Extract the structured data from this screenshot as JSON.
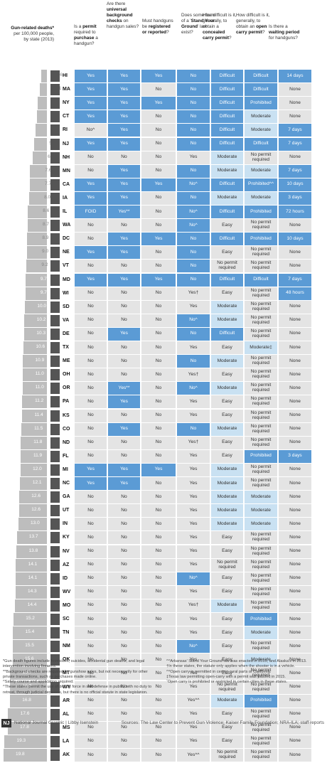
{
  "headers": {
    "deaths": [
      "Gun-related deaths*",
      "per 100,000 people,",
      "by state (2013)"
    ],
    "permit": [
      "Is a ",
      "permit",
      " required to ",
      "purchase",
      " a handgun?"
    ],
    "background": [
      "Are there ",
      "universal background checks",
      " on handgun sales?"
    ],
    "registered": [
      "Must handguns be ",
      "registered or reported",
      "?"
    ],
    "syg": [
      "Does some form of a '",
      "Stand Your Ground",
      "' law exist?"
    ],
    "concealed": [
      "How difficult is it, generally, to obtain a ",
      "concealed carry permit",
      "?"
    ],
    "open": [
      "How difficult is it, generally, to obtain an ",
      "open carry permit",
      "?"
    ],
    "waiting": [
      "Is there a ",
      "waiting period",
      " for handguns?"
    ]
  },
  "colors": {
    "blue": "#5b9bd5",
    "light": "#c9e1f2",
    "grey": "#e4e4e4",
    "dark": "#555555",
    "bar": "#bdbdbd"
  },
  "chart_data": {
    "type": "table",
    "xlim": [
      0,
      20
    ],
    "columns": [
      "State",
      "Gun-related deaths per 100,000",
      "Permit to purchase",
      "Universal background checks",
      "Registered or reported",
      "Stand Your Ground",
      "Concealed carry permit",
      "Open carry permit",
      "Waiting period"
    ],
    "rows": [
      [
        "HI",
        "2.6",
        "Yes",
        "Yes",
        "Yes",
        "No",
        "Difficult",
        "Difficult",
        "14 days"
      ],
      [
        "MA",
        "3.1",
        "Yes",
        "Yes",
        "No",
        "No",
        "Difficult",
        "Difficult",
        "None"
      ],
      [
        "NY",
        "4.2",
        "Yes",
        "Yes",
        "Yes",
        "No",
        "Difficult",
        "Prohibited",
        "None"
      ],
      [
        "CT",
        "4.4",
        "Yes",
        "Yes",
        "No",
        "No",
        "Difficult",
        "Moderate",
        "None"
      ],
      [
        "RI",
        "5.3",
        "No^",
        "Yes",
        "No",
        "No",
        "Difficult",
        "Moderate",
        "7 days"
      ],
      [
        "NJ",
        "5.7",
        "Yes",
        "Yes",
        "No",
        "No",
        "Difficult",
        "Difficult",
        "7 days"
      ],
      [
        "NH",
        "6.4",
        "No",
        "No",
        "No",
        "Yes",
        "Moderate",
        "No permit required",
        "None"
      ],
      [
        "MN",
        "7.6",
        "No",
        "Yes",
        "No",
        "No",
        "Moderate",
        "Moderate",
        "7 days"
      ],
      [
        "CA",
        "7.7",
        "Yes",
        "Yes",
        "Yes",
        "No^",
        "Difficult",
        "Prohibited^^",
        "10 days"
      ],
      [
        "IA",
        "8.0",
        "Yes",
        "Yes",
        "No",
        "No",
        "Moderate",
        "Moderate",
        "3 days"
      ],
      [
        "IL",
        "8.6",
        "FOID",
        "Yes**",
        "No",
        "No^",
        "Difficult",
        "Prohibited",
        "72 hours"
      ],
      [
        "WA",
        "8.7",
        "No",
        "No",
        "No",
        "No^",
        "Easy",
        "No permit required",
        "None"
      ],
      [
        "DC",
        "8.9",
        "No",
        "Yes",
        "Yes",
        "No",
        "Difficult",
        "Prohibited",
        "10 days"
      ],
      [
        "NE",
        "9.0",
        "Yes",
        "Yes",
        "No",
        "No",
        "Easy",
        "No permit required",
        "None"
      ],
      [
        "VT",
        "9.2",
        "No",
        "No",
        "No",
        "No",
        "No permit required",
        "No permit required",
        "None"
      ],
      [
        "MD",
        "9.7",
        "Yes",
        "Yes",
        "Yes",
        "No",
        "Difficult",
        "Difficult",
        "7 days"
      ],
      [
        "WI",
        "9.7",
        "No",
        "No",
        "No",
        "Yes†",
        "Easy",
        "No permit required",
        "48 hours"
      ],
      [
        "SD",
        "10.0",
        "No",
        "No",
        "No",
        "Yes",
        "Moderate",
        "No permit required",
        "None"
      ],
      [
        "VA",
        "10.2",
        "No",
        "No",
        "No",
        "No^",
        "Moderate",
        "No permit required",
        "None"
      ],
      [
        "DE",
        "10.3",
        "No",
        "Yes",
        "No",
        "No",
        "Difficult",
        "No permit required",
        "None"
      ],
      [
        "TX",
        "10.6",
        "No",
        "No",
        "No",
        "Yes",
        "Easy",
        "Moderate‡",
        "None"
      ],
      [
        "ME",
        "10.9",
        "No",
        "No",
        "No",
        "No",
        "Moderate",
        "No permit required",
        "None"
      ],
      [
        "OH",
        "11.0",
        "No",
        "No",
        "No",
        "Yes†",
        "Easy",
        "No permit required",
        "None"
      ],
      [
        "OR",
        "11.0",
        "No",
        "Yes**",
        "No",
        "No^",
        "Moderate",
        "No permit required",
        "None"
      ],
      [
        "PA",
        "11.2",
        "No",
        "Yes",
        "No",
        "Yes",
        "Easy",
        "No permit required",
        "None"
      ],
      [
        "KS",
        "11.4",
        "No",
        "No",
        "No",
        "Yes",
        "Easy",
        "No permit required",
        "None"
      ],
      [
        "CO",
        "11.5",
        "No",
        "Yes",
        "No",
        "No",
        "Moderate",
        "No permit required",
        "None"
      ],
      [
        "ND",
        "11.8",
        "No",
        "No",
        "No",
        "Yes†",
        "Easy",
        "No permit required",
        "None"
      ],
      [
        "FL",
        "11.9",
        "No",
        "No",
        "No",
        "Yes",
        "Easy",
        "Prohibited",
        "3 days"
      ],
      [
        "MI",
        "12.0",
        "Yes",
        "Yes",
        "Yes",
        "Yes",
        "Moderate",
        "No permit required",
        "None"
      ],
      [
        "NC",
        "12.1",
        "Yes",
        "Yes",
        "No",
        "Yes",
        "Moderate",
        "No permit required",
        "None"
      ],
      [
        "GA",
        "12.6",
        "No",
        "No",
        "No",
        "Yes",
        "Moderate",
        "Moderate",
        "None"
      ],
      [
        "UT",
        "12.6",
        "No",
        "No",
        "No",
        "Yes",
        "Moderate",
        "Moderate",
        "None"
      ],
      [
        "IN",
        "13.0",
        "No",
        "No",
        "No",
        "Yes",
        "Moderate",
        "Moderate",
        "None"
      ],
      [
        "KY",
        "13.7",
        "No",
        "No",
        "No",
        "Yes",
        "Easy",
        "No permit required",
        "None"
      ],
      [
        "NV",
        "13.8",
        "No",
        "No",
        "No",
        "Yes",
        "Easy",
        "No permit required",
        "None"
      ],
      [
        "AZ",
        "14.1",
        "No",
        "No",
        "No",
        "Yes",
        "No permit required",
        "No permit required",
        "None"
      ],
      [
        "ID",
        "14.1",
        "No",
        "No",
        "No",
        "No^",
        "Easy",
        "No permit required",
        "None"
      ],
      [
        "WV",
        "14.3",
        "No",
        "No",
        "No",
        "Yes",
        "Easy",
        "No permit required",
        "None"
      ],
      [
        "MO",
        "14.4",
        "No",
        "No",
        "No",
        "Yes†",
        "Moderate",
        "No permit required",
        "None"
      ],
      [
        "SC",
        "15.2",
        "No",
        "No",
        "No",
        "Yes",
        "Easy",
        "Prohibited",
        "None"
      ],
      [
        "TN",
        "15.4",
        "No",
        "No",
        "No",
        "Yes",
        "Easy",
        "Moderate",
        "None"
      ],
      [
        "NM",
        "15.5",
        "No",
        "No",
        "No",
        "No^",
        "Easy",
        "No permit required",
        "None"
      ],
      [
        "OK",
        "15.6",
        "No",
        "No",
        "No",
        "Yes",
        "Easy",
        "Moderate",
        "None"
      ],
      [
        "MT",
        "16.7",
        "No",
        "No",
        "No",
        "Yes",
        "Easy",
        "No permit required",
        "None"
      ],
      [
        "WY",
        "16.7",
        "No",
        "No",
        "No",
        "Yes",
        "No permit required",
        "No permit required",
        "None"
      ],
      [
        "AR",
        "16.8",
        "No",
        "No",
        "No",
        "Yes^^",
        "Moderate",
        "Prohibited",
        "None"
      ],
      [
        "AL",
        "17.6",
        "No",
        "No",
        "No",
        "Yes",
        "Easy",
        "No permit required",
        "None"
      ],
      [
        "MS",
        "17.8",
        "No",
        "No",
        "No",
        "Yes",
        "Easy",
        "No permit required",
        "None"
      ],
      [
        "LA",
        "19.3",
        "No",
        "No",
        "No",
        "Yes",
        "Easy",
        "No permit required",
        "None"
      ],
      [
        "AK",
        "19.8",
        "No",
        "No",
        "No",
        "Yes^^",
        "No permit required",
        "No permit required",
        "None"
      ]
    ]
  },
  "footnotes": {
    "left": [
      "*Gun death figures include homicides, suicides, accidental gun deaths, and legal intervention involving firearms.",
      "**Background checks are required for gunshow sales, but not necessarily for other private transactions, such as purchases made online.",
      "^Safety course and application required.",
      "^These states permit the use of deadly force in self-defense in public, with no duty to retreat, through judicial decisions, but there is no official statute in state legislation."
    ],
    "right": [
      "^^Arkansas' Stand Your Ground law was enacted in 2015, and Alaska's in 2013.",
      "†In these states, the statute only applies when the shooter is in a vehicle.",
      "^^Open carry is permitted in certain rural parts of California.",
      "‡Texas law permitting open-carry with a permit was passed in 2015.",
      "ˆOpen carry is prohibited or restricted in certain cities in these states."
    ]
  },
  "footer": {
    "logo": "NJ",
    "credit": "National Journal Graphic  |  Libby Isenstein",
    "sources": "Sources: The Law Center to Prevent Gun Violence; Kaiser Family Foundation; NRA-ILA; staff reports"
  }
}
